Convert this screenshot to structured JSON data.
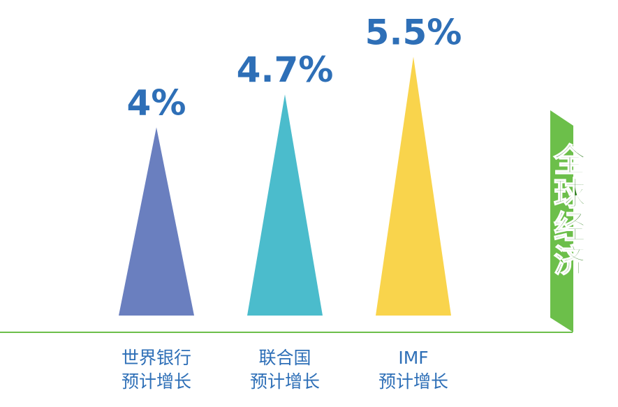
{
  "chart_data": {
    "type": "triangle-bar",
    "categories": [
      "世界银行\n预计增长",
      "联合国\n预计增长",
      "IMF\n预计增长"
    ],
    "values": [
      4,
      4.7,
      5.5
    ],
    "value_labels": [
      "4%",
      "4.7%",
      "5.5%"
    ],
    "colors": [
      "#6a7fbf",
      "#4bbccc",
      "#f9d44c"
    ],
    "side_label": "全球经济"
  }
}
